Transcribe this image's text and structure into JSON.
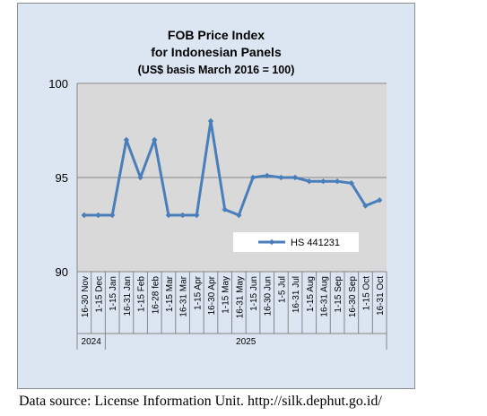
{
  "chart_data": {
    "type": "line",
    "title": [
      "FOB Price Index",
      "for Indonesian Panels",
      "(US$ basis March 2016 = 100)"
    ],
    "categories": [
      "16-30 Nov",
      "1-15 Dec",
      "1-15 Jan",
      "16-31 Jan",
      "1-15 Feb",
      "16-28 feb",
      "1-15 Mar",
      "16-31 Mar",
      "1-15 Apr",
      "16-30 Apr",
      "1-15 May",
      "16-31 May",
      "1-15 Jun",
      "16-30 Jun",
      "1-5 Jul",
      "16-31 Jul",
      "1-15 Aug",
      "16-31 Aug",
      "1-15 Sep",
      "16-30 Sep",
      "1-15 Oct",
      "16-31 Oct"
    ],
    "year_groups": [
      {
        "label": "2024",
        "start": 0,
        "end": 1
      },
      {
        "label": "2025",
        "start": 2,
        "end": 21
      }
    ],
    "series": [
      {
        "name": "HS 441231",
        "color": "#4a7ebb",
        "values": [
          93.0,
          93.0,
          93.0,
          97.0,
          95.0,
          97.0,
          93.0,
          93.0,
          93.0,
          98.0,
          93.3,
          93.0,
          95.0,
          95.1,
          95.0,
          95.0,
          94.8,
          94.8,
          94.8,
          94.7,
          93.5,
          93.8
        ]
      }
    ],
    "ylim": [
      90,
      100
    ],
    "yticks": [
      "90",
      "95",
      "100"
    ],
    "grid": true,
    "legend_position": "inside-bottom-right",
    "plot_background": "#d9d9d9",
    "chart_background": "#dce6f2"
  },
  "source_note": "Data source: License Information Unit. http://silk.dephut.go.id/"
}
